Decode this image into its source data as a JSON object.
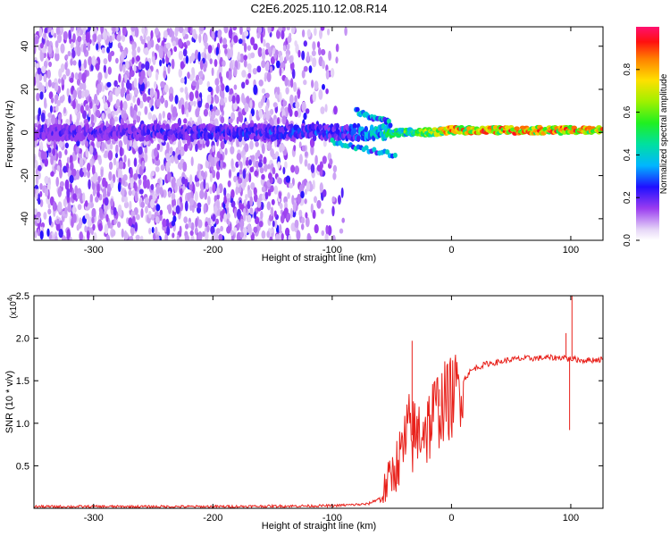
{
  "title": "C2E6.2025.110.12.08.R14",
  "chart_data": [
    {
      "type": "heatmap",
      "description_of_content": "spectrogram of normalized spectral amplitude vs height; broadband noise at heights below about -90 km, narrow band near 0 Hz strongest above -50 km",
      "xlabel": "Height of straight line (km)",
      "ylabel": "Frequency (Hz)",
      "xlim": [
        -350,
        127
      ],
      "ylim": [
        -50,
        49
      ],
      "xticks": [
        -300,
        -200,
        -100,
        0,
        100
      ],
      "yticks": [
        -40,
        -20,
        0,
        20,
        40
      ],
      "colorbar": {
        "label": "Normalized spectral amplitude",
        "range": [
          0,
          1
        ],
        "ticks": [
          "0.0",
          "0.2",
          "0.4",
          "0.6",
          "0.8"
        ]
      },
      "band": {
        "height_km": [
          -280,
          -240,
          -200,
          -160,
          -120,
          -90,
          -80,
          -70,
          -60,
          -50,
          -40,
          -20,
          0,
          40,
          80,
          120
        ],
        "center_freq_hz": [
          0,
          0,
          0,
          0,
          0,
          0,
          0,
          0,
          0,
          0,
          0,
          0,
          1,
          1,
          1,
          1
        ],
        "amplitude": [
          0.25,
          0.3,
          0.3,
          0.3,
          0.32,
          0.35,
          0.4,
          0.45,
          0.5,
          0.55,
          0.6,
          0.75,
          0.9,
          0.95,
          0.95,
          0.9
        ]
      },
      "features": [
        {
          "height_km": [
            -80,
            -50
          ],
          "freq_hz": [
            10,
            4
          ],
          "note": "upper branch"
        },
        {
          "height_km": [
            -100,
            -45
          ],
          "freq_hz": [
            -4,
            -11
          ],
          "note": "lower branch"
        }
      ]
    },
    {
      "type": "line",
      "xlabel": "Height of straight line (km)",
      "ylabel": "SNR (10 * v/v)",
      "multiplier": "(x10",
      "multiplier_exp": "4",
      "xlim": [
        -350,
        127
      ],
      "ylim": [
        0,
        2.5
      ],
      "xticks": [
        -300,
        -200,
        -100,
        0,
        100
      ],
      "yticks": [
        "0.5",
        "1.0",
        "1.5",
        "2.0",
        "2.5"
      ],
      "color": "#e8201a",
      "series": [
        {
          "x": [
            -350,
            -300,
            -200,
            -100,
            -70,
            -60,
            -55,
            -50,
            -45,
            -40,
            -35,
            -30,
            -25,
            -20,
            -15,
            -10,
            -5,
            0,
            5,
            10,
            15,
            20,
            30,
            40,
            50,
            60,
            80,
            90,
            95,
            98,
            100,
            105,
            110,
            127
          ],
          "y": [
            0.02,
            0.02,
            0.02,
            0.03,
            0.05,
            0.12,
            0.25,
            0.4,
            0.55,
            0.7,
            0.9,
            0.8,
            1.0,
            0.95,
            1.1,
            1.2,
            1.25,
            1.3,
            1.4,
            1.5,
            1.6,
            1.65,
            1.7,
            1.72,
            1.75,
            1.76,
            1.77,
            1.77,
            1.78,
            1.75,
            1.76,
            1.75,
            1.74,
            1.75
          ]
        }
      ],
      "spikes": [
        {
          "x": -33,
          "y": 1.97
        },
        {
          "x": -28,
          "y": 1.05
        },
        {
          "x": -10,
          "y": 1.4
        },
        {
          "x": 96,
          "y": 2.06
        },
        {
          "x": 99,
          "y": 0.92
        },
        {
          "x": 101,
          "y": 2.55
        }
      ]
    }
  ]
}
